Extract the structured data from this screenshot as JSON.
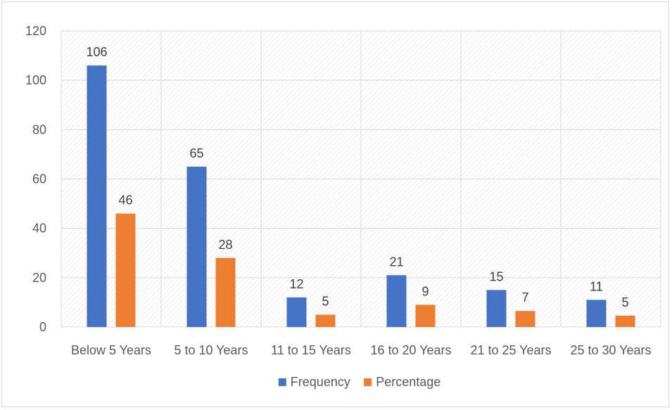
{
  "chart_data": {
    "type": "bar",
    "categories": [
      "Below 5 Years",
      "5 to 10 Years",
      "11 to 15 Years",
      "16 to 20 Years",
      "21 to 25 Years",
      "25 to 30 Years"
    ],
    "series": [
      {
        "name": "Frequency",
        "color": "#4472c4",
        "values": [
          106,
          65,
          12,
          21,
          15,
          11
        ],
        "labels": [
          "106",
          "65",
          "12",
          "21",
          "15",
          "11"
        ]
      },
      {
        "name": "Percentage",
        "color": "#ed7d31",
        "values": [
          46,
          28,
          5,
          9,
          6.5,
          4.6
        ],
        "labels": [
          "46",
          "28",
          "5",
          "9",
          "7",
          "5"
        ]
      }
    ],
    "ylim": [
      0,
      120
    ],
    "yticks": [
      0,
      20,
      40,
      60,
      80,
      100,
      120
    ],
    "ytick_labels": [
      "0",
      "20",
      "40",
      "60",
      "80",
      "100",
      "120"
    ],
    "grid": true,
    "plot_background": "hatched",
    "legend_position": "bottom",
    "title": "",
    "xlabel": "",
    "ylabel": ""
  }
}
